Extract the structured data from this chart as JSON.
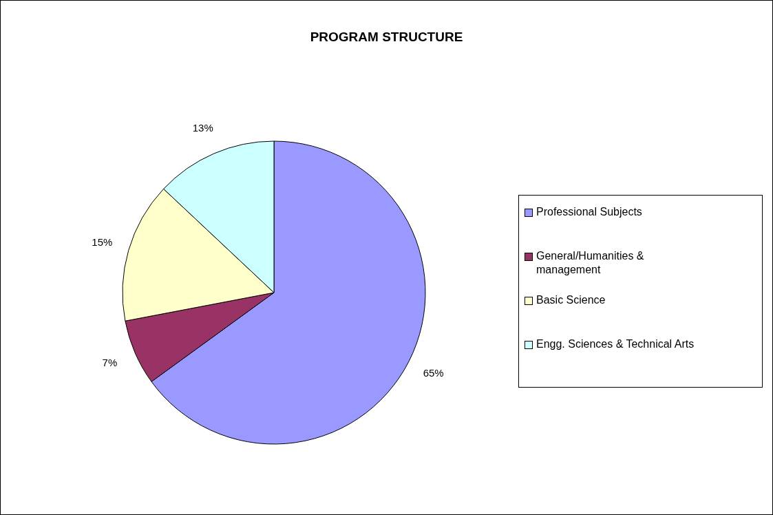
{
  "chart_data": {
    "type": "pie",
    "title": "PROGRAM STRUCTURE",
    "categories": [
      "Professional Subjects",
      "General/Humanities & management",
      "Basic Science",
      "Engg. Sciences & Technical Arts"
    ],
    "values": [
      65,
      7,
      15,
      13
    ],
    "colors": [
      "#9999ff",
      "#993366",
      "#ffffcc",
      "#ccffff"
    ],
    "value_labels": [
      "65%",
      "7%",
      "15%",
      "13%"
    ],
    "legend": "right"
  }
}
